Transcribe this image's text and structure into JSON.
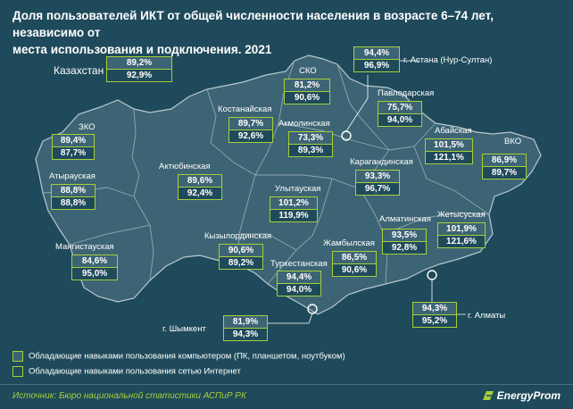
{
  "title": {
    "line1": "Доля пользователей ИКТ от общей численности населения в возрасте 6–74 лет, независимо от",
    "line2": "места использования и подключения. 2021"
  },
  "kazakhstan": {
    "label": "Казахстан",
    "computer": "89,2%",
    "internet": "92,9%"
  },
  "regions": [
    {
      "name": "ЗКО",
      "computer": "89,4%",
      "internet": "87,7%"
    },
    {
      "name": "Атырауская",
      "computer": "88,8%",
      "internet": "88,8%"
    },
    {
      "name": "Мангистауская",
      "computer": "84,6%",
      "internet": "95,0%"
    },
    {
      "name": "Актюбинская",
      "computer": "89,6%",
      "internet": "92,4%"
    },
    {
      "name": "Костанайская",
      "computer": "89,7%",
      "internet": "92,6%"
    },
    {
      "name": "СКО",
      "computer": "81,2%",
      "internet": "90,6%"
    },
    {
      "name": "Акмолинская",
      "computer": "73,3%",
      "internet": "89,3%"
    },
    {
      "name": "Павлодарская",
      "computer": "75,7%",
      "internet": "94,0%"
    },
    {
      "name": "Абайская",
      "computer": "101,5%",
      "internet": "121,1%"
    },
    {
      "name": "ВКО",
      "computer": "86,9%",
      "internet": "89,7%"
    },
    {
      "name": "Карагандинская",
      "computer": "93,3%",
      "internet": "96,7%"
    },
    {
      "name": "Улытауская",
      "computer": "101,2%",
      "internet": "119,9%"
    },
    {
      "name": "Кызылординская",
      "computer": "90,6%",
      "internet": "89,2%"
    },
    {
      "name": "Туркестанская",
      "computer": "94,4%",
      "internet": "94,0%"
    },
    {
      "name": "Жамбылская",
      "computer": "86,5%",
      "internet": "90,6%"
    },
    {
      "name": "Алматинская",
      "computer": "93,5%",
      "internet": "92,8%"
    },
    {
      "name": "Жетысуская",
      "computer": "101,9%",
      "internet": "121,6%"
    }
  ],
  "cities": [
    {
      "name": "г. Астана (Нур-Султан)",
      "computer": "94,4%",
      "internet": "96,9%"
    },
    {
      "name": "г. Шымкент",
      "computer": "81,9%",
      "internet": "94,3%"
    },
    {
      "name": "г. Алматы",
      "computer": "94,3%",
      "internet": "95,2%"
    }
  ],
  "legend": {
    "computer": "Обладающие навыками пользования компьютером (ПК, планшетом, ноутбуком)",
    "internet": "Обладающие навыками пользования сетью Интернет"
  },
  "colors": {
    "background": "#1f4a5b",
    "map_fill": "#3d6474",
    "border_accent": "#a6cf3a"
  },
  "source": "Источник: Бюро национальной статистики АСПиР РК",
  "brand": "EnergyProm"
}
